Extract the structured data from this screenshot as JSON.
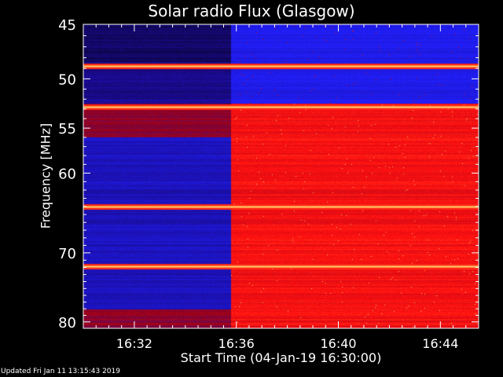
{
  "chart_data": {
    "type": "heatmap",
    "title": "Solar radio Flux (Glasgow)",
    "xlabel": "Start Time (04-Jan-19 16:30:00)",
    "ylabel": "Frequency [MHz]",
    "x_range_minutes": [
      0,
      15.5
    ],
    "x_ticks": [
      {
        "label": "16:32",
        "minute": 2
      },
      {
        "label": "16:36",
        "minute": 6
      },
      {
        "label": "16:40",
        "minute": 10
      },
      {
        "label": "16:44",
        "minute": 14
      }
    ],
    "y_range_mhz": [
      45,
      81
    ],
    "y_scale": "log",
    "y_ticks": [
      45,
      50,
      55,
      60,
      70,
      80
    ],
    "colormap": [
      "#000000",
      "#1a0a8c",
      "#2020ff",
      "#8a0020",
      "#ff1010",
      "#ff8030",
      "#ffd070",
      "#ffffff"
    ],
    "regions": [
      {
        "desc": "quiet",
        "t_from": 0,
        "t_to": 5.8
      },
      {
        "desc": "enhanced",
        "t_from": 5.8,
        "t_to": 15.5
      }
    ],
    "bright_lines_mhz": [
      48.8,
      52.8,
      64.0,
      71.8
    ]
  },
  "footer": {
    "updated": "Updated Fri Jan 11 13:15:43 2019"
  }
}
